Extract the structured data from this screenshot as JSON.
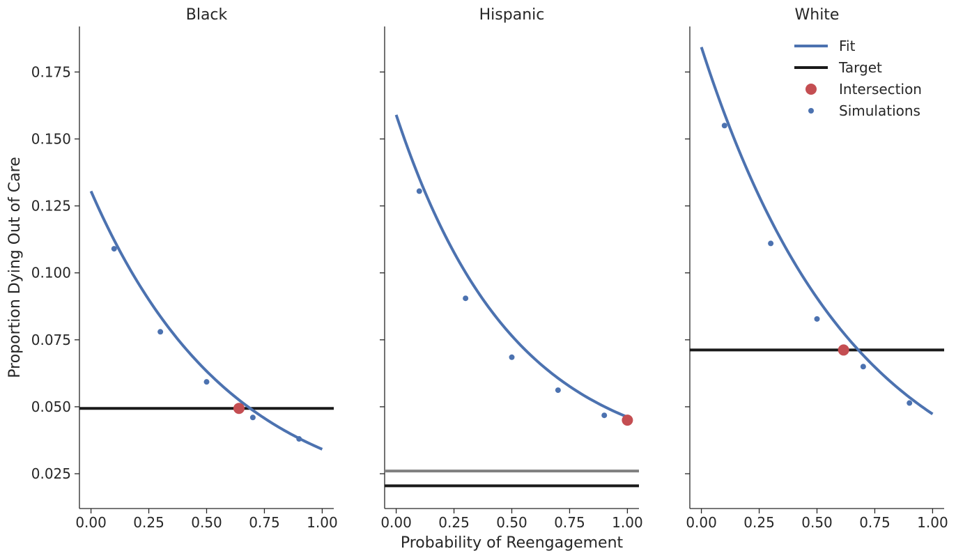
{
  "chart_data": {
    "type": "line",
    "xlabel": "Probability of Reengagement",
    "ylabel": "Proportion Dying Out of Care",
    "xlim": [
      -0.05,
      1.05
    ],
    "ylim": [
      0.012,
      0.192
    ],
    "xticks": [
      "0.00",
      "0.25",
      "0.50",
      "0.75",
      "1.00"
    ],
    "yticks": [
      "0.025",
      "0.050",
      "0.075",
      "0.100",
      "0.125",
      "0.150",
      "0.175"
    ],
    "legend": {
      "placement": "top-right",
      "entries": [
        {
          "label": "Fit",
          "kind": "line",
          "color": "#4c72b0"
        },
        {
          "label": "Target",
          "kind": "line",
          "color": "#1a1a1a"
        },
        {
          "label": "Intersection",
          "kind": "bigdot",
          "color": "#c44e52"
        },
        {
          "label": "Simulations",
          "kind": "smalldot",
          "color": "#4c72b0"
        }
      ]
    },
    "panels": [
      {
        "title": "Black",
        "fit": {
          "y0": 0.1305,
          "decay": 1.67,
          "floor": 0.0118
        },
        "simulations": [
          {
            "x": 0.1,
            "y": 0.109
          },
          {
            "x": 0.3,
            "y": 0.078
          },
          {
            "x": 0.5,
            "y": 0.0593
          },
          {
            "x": 0.7,
            "y": 0.046
          },
          {
            "x": 0.9,
            "y": 0.038
          }
        ],
        "target": 0.0494,
        "secondary_target": null,
        "intersection": {
          "x": 0.64,
          "y": 0.0494
        }
      },
      {
        "title": "Hispanic",
        "fit": {
          "y0": 0.159,
          "decay": 2.0,
          "floor": 0.0285
        },
        "simulations": [
          {
            "x": 0.1,
            "y": 0.1305
          },
          {
            "x": 0.3,
            "y": 0.0905
          },
          {
            "x": 0.5,
            "y": 0.0685
          },
          {
            "x": 0.7,
            "y": 0.0562
          },
          {
            "x": 0.9,
            "y": 0.0468
          }
        ],
        "target": 0.0205,
        "secondary_target": 0.026,
        "intersection": {
          "x": 1.0,
          "y": 0.045
        }
      },
      {
        "title": "White",
        "fit": {
          "y0": 0.1843,
          "decay": 1.54,
          "floor": 0.0099
        },
        "simulations": [
          {
            "x": 0.1,
            "y": 0.155
          },
          {
            "x": 0.3,
            "y": 0.111
          },
          {
            "x": 0.5,
            "y": 0.0828
          },
          {
            "x": 0.7,
            "y": 0.065
          },
          {
            "x": 0.9,
            "y": 0.0514
          }
        ],
        "target": 0.0712,
        "secondary_target": null,
        "intersection": {
          "x": 0.615,
          "y": 0.0712
        }
      }
    ],
    "colors": {
      "fit": "#4c72b0",
      "target": "#1a1a1a",
      "secondary_target": "#808080",
      "intersection": "#c44e52",
      "axis": "#262626"
    }
  }
}
